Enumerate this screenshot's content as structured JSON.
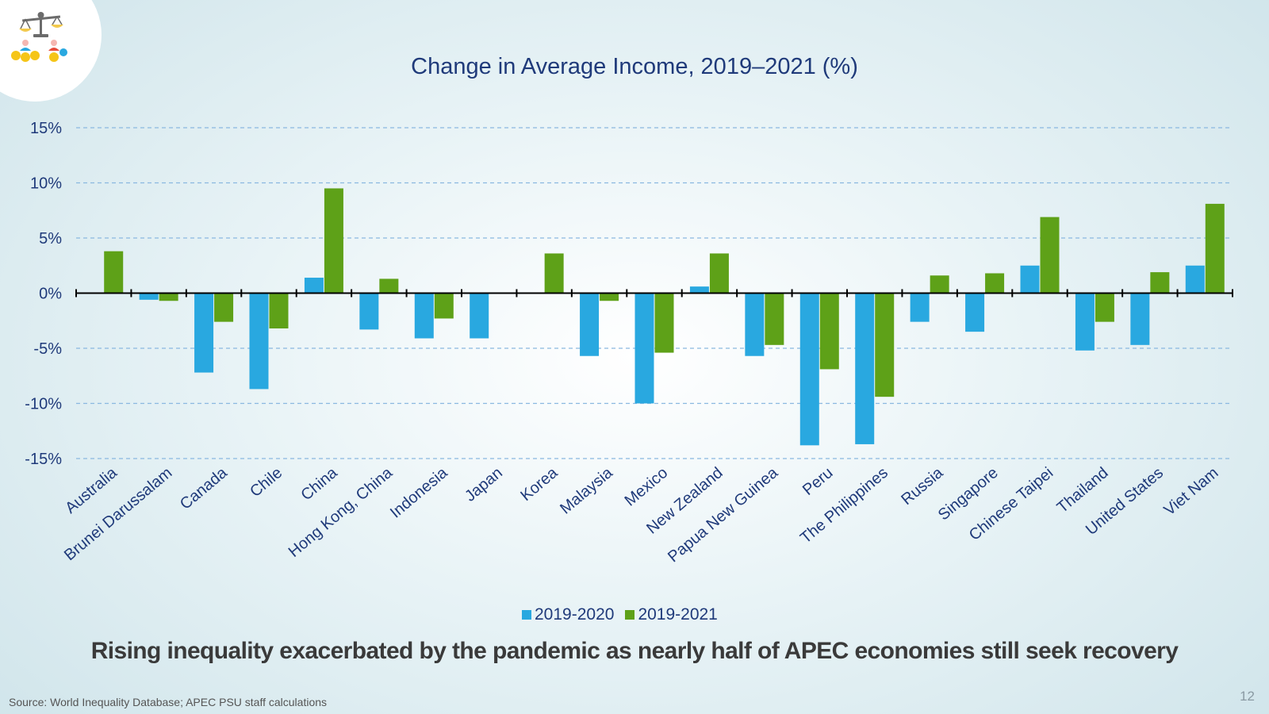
{
  "slide": {
    "headline": "Rising inequality exacerbated by the pandemic as nearly half of APEC economies still seek recovery",
    "source": "Source: World Inequality Database; APEC PSU staff calculations",
    "page_number": "12"
  },
  "colors": {
    "series_2020": "#29a8e0",
    "series_2021": "#5ea118",
    "title": "#1f3a7a",
    "grid": "#8ab8e0"
  },
  "logo": {
    "icon": "scales-of-justice-people-coins-icon"
  },
  "chart_data": {
    "type": "bar",
    "title": "Change in Average Income, 2019–2021 (%)",
    "xlabel": "",
    "ylabel": "",
    "ylim": [
      -15,
      15
    ],
    "yticks": [
      15,
      10,
      5,
      0,
      -5,
      -10,
      -15
    ],
    "ytick_labels": [
      "15%",
      "10%",
      "5%",
      "0%",
      "-5%",
      "-10%",
      "-15%"
    ],
    "grid": true,
    "legend_position": "bottom-center",
    "categories": [
      "Australia",
      "Brunei Darussalam",
      "Canada",
      "Chile",
      "China",
      "Hong Kong, China",
      "Indonesia",
      "Japan",
      "Korea",
      "Malaysia",
      "Mexico",
      "New Zealand",
      "Papua New Guinea",
      "Peru",
      "The Philippines",
      "Russia",
      "Singapore",
      "Chinese Taipei",
      "Thailand",
      "United States",
      "Viet Nam"
    ],
    "series": [
      {
        "name": "2019-2020",
        "values": [
          0.0,
          -0.6,
          -7.2,
          -8.7,
          1.4,
          -3.3,
          -4.1,
          -4.1,
          0.0,
          -5.7,
          -10.0,
          0.6,
          -5.7,
          -13.8,
          -13.7,
          -2.6,
          -3.5,
          2.5,
          -5.2,
          -4.7,
          2.5
        ]
      },
      {
        "name": "2019-2021",
        "values": [
          3.8,
          -0.7,
          -2.6,
          -3.2,
          9.5,
          1.3,
          -2.3,
          0.0,
          3.6,
          -0.7,
          -5.4,
          3.6,
          -4.7,
          -6.9,
          -9.4,
          1.6,
          1.8,
          6.9,
          -2.6,
          1.9,
          8.1
        ]
      }
    ]
  }
}
